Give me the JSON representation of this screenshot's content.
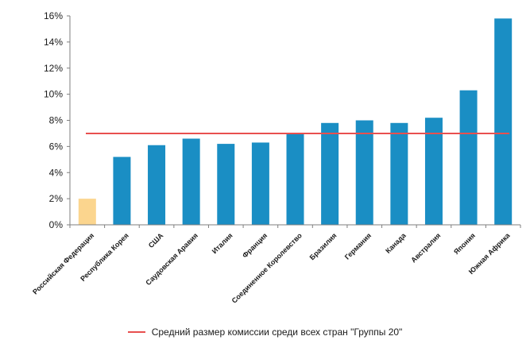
{
  "chart_data": {
    "type": "bar",
    "categories": [
      "Российская Федерация",
      "Республика Корея",
      "США",
      "Саудовская Аравия",
      "Италия",
      "Франция",
      "Соединенное Королевство",
      "Бразилия",
      "Германия",
      "Канада",
      "Австралия",
      "Япония",
      "Южная Африка"
    ],
    "values": [
      2.0,
      5.2,
      6.1,
      6.6,
      6.2,
      6.3,
      7.0,
      7.8,
      8.0,
      7.8,
      8.2,
      10.3,
      15.8
    ],
    "ylim": [
      0,
      16
    ],
    "yticks": [
      "0%",
      "2%",
      "4%",
      "6%",
      "8%",
      "10%",
      "12%",
      "14%",
      "16%"
    ],
    "reference_line": {
      "value": 7.0,
      "label": "Средний размер комиссии среди всех стран \"Группы 20\"",
      "color": "#e8504f"
    },
    "colors": {
      "bar": "#1a8ec4",
      "highlight": "#fbd58e"
    },
    "highlight_index": 0,
    "grid": false,
    "legend_position": "bottom"
  }
}
